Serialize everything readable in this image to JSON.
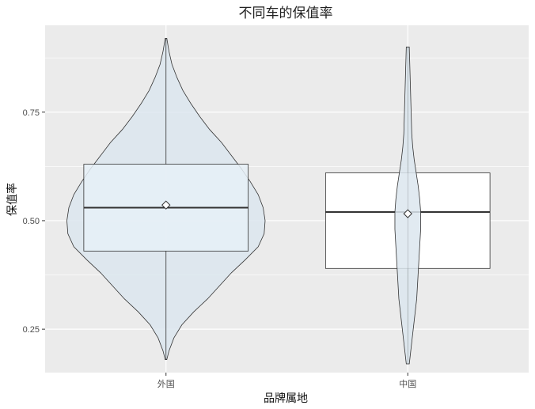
{
  "chart_data": {
    "type": "violin",
    "title": "不同车的保值率",
    "xlabel": "品牌属地",
    "ylabel": "保值率",
    "ylim": [
      0.15,
      0.95
    ],
    "yticks": [
      0.25,
      0.5,
      0.75
    ],
    "ytick_labels": [
      "0.25",
      "0.50",
      "0.75"
    ],
    "categories": [
      "外国",
      "中国"
    ],
    "grid": true,
    "colors": {
      "panel_bg": "#ebebeb",
      "grid": "#ffffff",
      "violin_fill": "#dce6ee",
      "box_fill_foreign": "#e6f0f7",
      "box_fill_china": "#ffffff",
      "outline": "#333333",
      "mean_marker": "#ffffff"
    },
    "groups": [
      {
        "name": "外国",
        "min": 0.18,
        "max": 0.92,
        "q1": 0.43,
        "median": 0.53,
        "q3": 0.63,
        "mean": 0.536,
        "box_fill": "#e6f0f7",
        "violin_fill": "#dce6ee",
        "violin_in_front": false,
        "density": [
          [
            0.18,
            0.008
          ],
          [
            0.2,
            0.03
          ],
          [
            0.23,
            0.08
          ],
          [
            0.26,
            0.16
          ],
          [
            0.29,
            0.28
          ],
          [
            0.32,
            0.42
          ],
          [
            0.35,
            0.54
          ],
          [
            0.38,
            0.66
          ],
          [
            0.41,
            0.8
          ],
          [
            0.44,
            0.93
          ],
          [
            0.47,
            0.99
          ],
          [
            0.5,
            1.0
          ],
          [
            0.53,
            0.98
          ],
          [
            0.56,
            0.93
          ],
          [
            0.59,
            0.85
          ],
          [
            0.62,
            0.76
          ],
          [
            0.65,
            0.66
          ],
          [
            0.68,
            0.56
          ],
          [
            0.71,
            0.44
          ],
          [
            0.74,
            0.34
          ],
          [
            0.77,
            0.25
          ],
          [
            0.8,
            0.17
          ],
          [
            0.83,
            0.11
          ],
          [
            0.86,
            0.06
          ],
          [
            0.89,
            0.03
          ],
          [
            0.92,
            0.008
          ]
        ]
      },
      {
        "name": "中国",
        "min": 0.17,
        "max": 0.9,
        "q1": 0.39,
        "median": 0.52,
        "q3": 0.61,
        "mean": 0.516,
        "box_fill": "#ffffff",
        "violin_fill": "#dce6ee",
        "violin_in_front": true,
        "density": [
          [
            0.17,
            0.015
          ],
          [
            0.2,
            0.03
          ],
          [
            0.24,
            0.05
          ],
          [
            0.28,
            0.07
          ],
          [
            0.32,
            0.09
          ],
          [
            0.36,
            0.1
          ],
          [
            0.4,
            0.11
          ],
          [
            0.44,
            0.12
          ],
          [
            0.48,
            0.13
          ],
          [
            0.52,
            0.13
          ],
          [
            0.55,
            0.12
          ],
          [
            0.58,
            0.105
          ],
          [
            0.61,
            0.085
          ],
          [
            0.64,
            0.065
          ],
          [
            0.67,
            0.05
          ],
          [
            0.7,
            0.04
          ],
          [
            0.74,
            0.035
          ],
          [
            0.78,
            0.03
          ],
          [
            0.82,
            0.025
          ],
          [
            0.86,
            0.02
          ],
          [
            0.9,
            0.015
          ]
        ]
      }
    ]
  }
}
